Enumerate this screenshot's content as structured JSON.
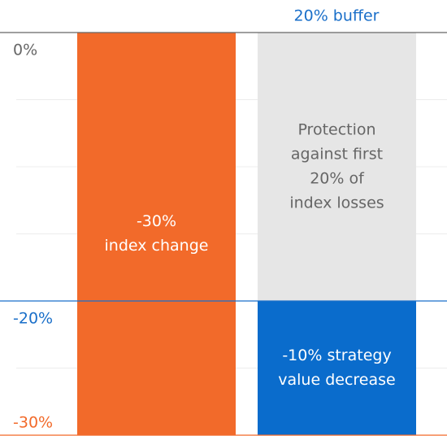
{
  "chart_data": {
    "type": "stacked_bar",
    "annotation": "20% buffer",
    "annotation_color": "#1a6fc9",
    "ylim": [
      -30,
      0
    ],
    "yticks": [
      {
        "value": 0,
        "label": "0%",
        "color": "#666666"
      },
      {
        "value": -20,
        "label": "-20%",
        "color": "#1a6fc9"
      },
      {
        "value": -30,
        "label": "-30%",
        "color": "#f26a2a"
      }
    ],
    "minor_yticks": [
      -5,
      -10,
      -15,
      -25
    ],
    "grid": true,
    "columns": [
      {
        "segments": [
          {
            "value": -30,
            "color": "#f26a2a",
            "text_color": "#ffffff",
            "label": [
              "-30%",
              "index change"
            ]
          }
        ]
      },
      {
        "segments": [
          {
            "value": -20,
            "color": "#e6e6e6",
            "text_color": "#666666",
            "label": [
              "Protection",
              "against first",
              "20% of",
              "index losses"
            ]
          },
          {
            "value": -10,
            "color": "#0a6ccc",
            "text_color": "#ffffff",
            "label": [
              "-10% strategy",
              "value decrease"
            ]
          }
        ]
      }
    ]
  }
}
